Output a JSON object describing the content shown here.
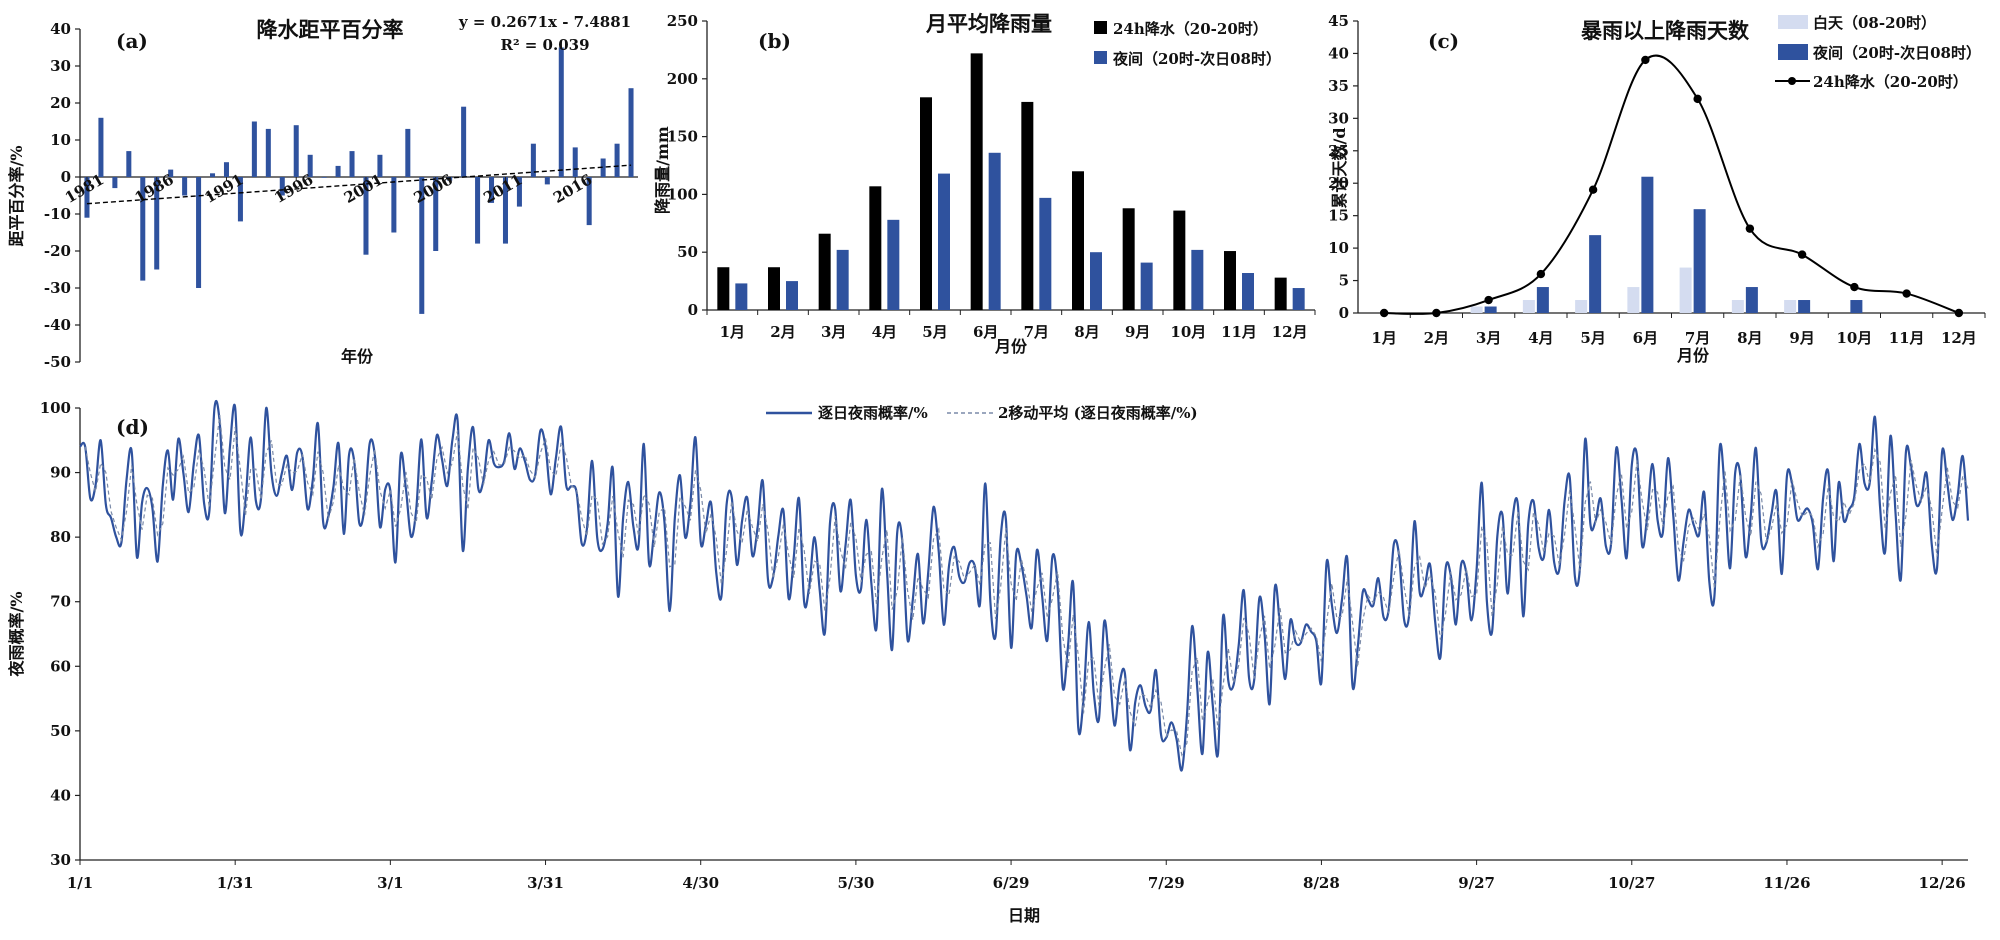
{
  "colors": {
    "primary": "#2f529e",
    "black": "#000000",
    "light": "#d4dcf0",
    "axis": "#222222",
    "dashed": "#7a8aa8"
  },
  "chart_data": [
    {
      "id": "a",
      "type": "bar",
      "panel_label": "(a)",
      "title": "降水距平百分率",
      "xlabel": "年份",
      "ylabel": "距平百分率/%",
      "ylim": [
        -50,
        40
      ],
      "yticks": [
        -50,
        -40,
        -30,
        -20,
        -10,
        0,
        10,
        20,
        30,
        40
      ],
      "x": [
        1981,
        1982,
        1983,
        1984,
        1985,
        1986,
        1987,
        1988,
        1989,
        1990,
        1991,
        1992,
        1993,
        1994,
        1995,
        1996,
        1997,
        1998,
        1999,
        2000,
        2001,
        2002,
        2003,
        2004,
        2005,
        2006,
        2007,
        2008,
        2009,
        2010,
        2011,
        2012,
        2013,
        2014,
        2015,
        2016,
        2017,
        2018,
        2019,
        2020
      ],
      "values": [
        -11,
        16,
        -3,
        7,
        -28,
        -25,
        2,
        -5,
        -30,
        1,
        4,
        -12,
        15,
        13,
        -5,
        14,
        6,
        0,
        3,
        7,
        -21,
        6,
        -15,
        13,
        -37,
        -20,
        -1,
        19,
        -18,
        -7,
        -18,
        -8,
        9,
        -2,
        35,
        8,
        -13,
        5,
        9,
        24
      ],
      "xtick_labels": [
        "1981",
        "1986",
        "1991",
        "1996",
        "2001",
        "2006",
        "2011",
        "2016"
      ],
      "trend": {
        "slope": 0.2671,
        "intercept": -7.4881
      },
      "equation": "y = 0.2671x - 7.4881",
      "r2": "R² = 0.039"
    },
    {
      "id": "b",
      "type": "bar",
      "panel_label": "(b)",
      "title": "月平均降雨量",
      "xlabel": "月份",
      "ylabel": "降雨量/mm",
      "ylim": [
        0,
        250
      ],
      "yticks": [
        0,
        50,
        100,
        150,
        200,
        250
      ],
      "categories": [
        "1月",
        "2月",
        "3月",
        "4月",
        "5月",
        "6月",
        "7月",
        "8月",
        "9月",
        "10月",
        "11月",
        "12月"
      ],
      "series": [
        {
          "name": "24h降水（20-20时）",
          "values": [
            37,
            37,
            66,
            107,
            184,
            222,
            180,
            120,
            88,
            86,
            51,
            28
          ]
        },
        {
          "name": "夜间（20时-次日08时）",
          "values": [
            23,
            25,
            52,
            78,
            118,
            136,
            97,
            50,
            41,
            52,
            32,
            19
          ]
        }
      ],
      "legend_position": "top-right"
    },
    {
      "id": "c",
      "type": "bar",
      "panel_label": "(c)",
      "title": "暴雨以上降雨天数",
      "xlabel": "月份",
      "ylabel": "累计天数/d",
      "ylim": [
        0,
        45
      ],
      "yticks": [
        0,
        5,
        10,
        15,
        20,
        25,
        30,
        35,
        40,
        45
      ],
      "categories": [
        "1月",
        "2月",
        "3月",
        "4月",
        "5月",
        "6月",
        "7月",
        "8月",
        "9月",
        "10月",
        "11月",
        "12月"
      ],
      "series": [
        {
          "name": "白天（08-20时）",
          "type": "bar",
          "values": [
            0,
            0,
            1,
            2,
            2,
            4,
            7,
            2,
            2,
            0,
            0,
            0
          ]
        },
        {
          "name": "夜间（20时-次日08时）",
          "type": "bar",
          "values": [
            0,
            0,
            1,
            4,
            12,
            21,
            16,
            4,
            2,
            2,
            0,
            0
          ]
        },
        {
          "name": "24h降水（20-20时）",
          "type": "line",
          "values": [
            0,
            0,
            2,
            6,
            19,
            39,
            33,
            13,
            9,
            4,
            3,
            0
          ]
        }
      ],
      "legend_position": "top-right"
    },
    {
      "id": "d",
      "type": "line",
      "panel_label": "(d)",
      "xlabel": "日期",
      "ylabel": "夜雨概率/%",
      "ylim": [
        30,
        100
      ],
      "yticks": [
        30,
        40,
        50,
        60,
        70,
        80,
        90,
        100
      ],
      "xticks": [
        {
          "day": 1,
          "label": "1/1"
        },
        {
          "day": 31,
          "label": "1/31"
        },
        {
          "day": 61,
          "label": "3/1"
        },
        {
          "day": 91,
          "label": "3/31"
        },
        {
          "day": 121,
          "label": "4/30"
        },
        {
          "day": 151,
          "label": "5/30"
        },
        {
          "day": 181,
          "label": "6/29"
        },
        {
          "day": 211,
          "label": "7/29"
        },
        {
          "day": 241,
          "label": "8/28"
        },
        {
          "day": 271,
          "label": "9/27"
        },
        {
          "day": 301,
          "label": "10/27"
        },
        {
          "day": 331,
          "label": "11/26"
        },
        {
          "day": 361,
          "label": "12/26"
        }
      ],
      "x_range": [
        1,
        366
      ],
      "series": [
        {
          "name": "逐日夜雨概率/%",
          "style": "solid"
        },
        {
          "name": "2移动平均 (逐日夜雨概率/%)",
          "style": "dashed"
        }
      ],
      "anchors_day": [
        1,
        8,
        15,
        22,
        30,
        38,
        46,
        54,
        62,
        70,
        78,
        86,
        94,
        100,
        106,
        112,
        120,
        128,
        136,
        144,
        152,
        160,
        168,
        176,
        184,
        190,
        196,
        202,
        207,
        212,
        218,
        224,
        230,
        236,
        244,
        252,
        260,
        268,
        276,
        284,
        292,
        300,
        308,
        316,
        324,
        332,
        340,
        348,
        356,
        362,
        366
      ],
      "anchors_value": [
        93,
        83,
        85,
        90,
        92,
        90,
        88,
        89,
        88,
        90,
        91,
        92,
        90,
        80,
        84,
        82,
        82,
        80,
        79,
        76,
        76,
        76,
        75,
        75,
        72,
        68,
        60,
        56,
        52,
        50,
        56,
        58,
        62,
        64,
        66,
        70,
        72,
        74,
        78,
        80,
        82,
        84,
        84,
        82,
        80,
        84,
        84,
        88,
        86,
        86,
        92
      ],
      "oscillation_amplitude": 7,
      "daily_values_first_days": [
        94,
        94,
        86,
        88,
        95,
        85,
        83,
        80
      ]
    }
  ]
}
